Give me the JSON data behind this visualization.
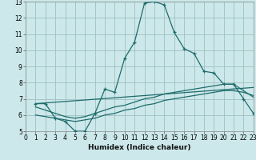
{
  "xlabel": "Humidex (Indice chaleur)",
  "bg_color": "#cce8ea",
  "grid_color": "#9fbfc2",
  "line_color": "#1e6b6b",
  "xlim": [
    0,
    23
  ],
  "ylim": [
    5,
    13
  ],
  "yticks": [
    5,
    6,
    7,
    8,
    9,
    10,
    11,
    12,
    13
  ],
  "xticks": [
    0,
    1,
    2,
    3,
    4,
    5,
    6,
    7,
    8,
    9,
    10,
    11,
    12,
    13,
    14,
    15,
    16,
    17,
    18,
    19,
    20,
    21,
    22,
    23
  ],
  "line1_x": [
    1,
    2,
    3,
    4,
    5,
    6,
    7,
    8,
    9,
    10,
    11,
    12,
    13,
    14,
    15,
    16,
    17,
    18,
    19,
    20,
    21,
    22,
    23
  ],
  "line1_y": [
    6.7,
    6.7,
    5.8,
    5.6,
    5.0,
    5.0,
    6.1,
    7.6,
    7.4,
    9.5,
    10.5,
    12.9,
    13.0,
    12.8,
    11.1,
    10.1,
    9.8,
    8.7,
    8.6,
    7.9,
    7.9,
    7.0,
    6.1
  ],
  "line2_x": [
    1,
    2,
    3,
    4,
    5,
    6,
    7,
    8,
    9,
    10,
    11,
    12,
    13,
    14,
    15,
    16,
    17,
    18,
    19,
    20,
    21,
    22,
    23
  ],
  "line2_y": [
    6.5,
    6.3,
    6.1,
    5.9,
    5.8,
    5.9,
    6.1,
    6.3,
    6.5,
    6.6,
    6.8,
    7.0,
    7.1,
    7.3,
    7.4,
    7.5,
    7.6,
    7.7,
    7.8,
    7.9,
    7.9,
    7.5,
    7.1
  ],
  "line3_x": [
    1,
    2,
    3,
    4,
    5,
    6,
    7,
    8,
    9,
    10,
    11,
    12,
    13,
    14,
    15,
    16,
    17,
    18,
    19,
    20,
    21,
    22,
    23
  ],
  "line3_y": [
    6.0,
    5.9,
    5.8,
    5.7,
    5.6,
    5.7,
    5.8,
    6.0,
    6.1,
    6.3,
    6.4,
    6.6,
    6.7,
    6.9,
    7.0,
    7.1,
    7.2,
    7.3,
    7.4,
    7.5,
    7.5,
    7.4,
    7.2
  ],
  "line4_x": [
    1,
    23
  ],
  "line4_y": [
    6.7,
    7.7
  ]
}
